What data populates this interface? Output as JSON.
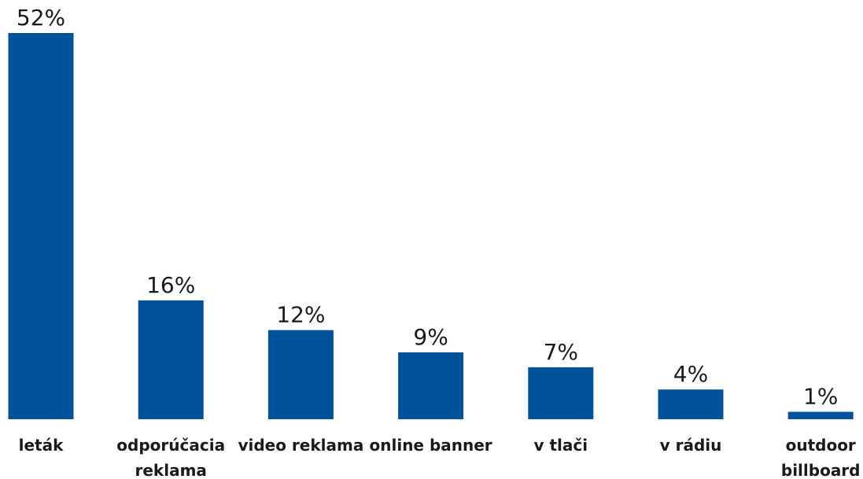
{
  "chart_data": {
    "type": "bar",
    "categories": [
      [
        "leták"
      ],
      [
        "odporúčacia",
        "reklama"
      ],
      [
        "video reklama"
      ],
      [
        "online banner"
      ],
      [
        "v tlači"
      ],
      [
        "v rádiu"
      ],
      [
        "outdoor",
        "billboard"
      ]
    ],
    "values": [
      52,
      16,
      12,
      9,
      7,
      4,
      1
    ],
    "value_labels": [
      "52%",
      "16%",
      "12%",
      "9%",
      "7%",
      "4%",
      "1%"
    ],
    "unit": "%",
    "ylim": [
      0,
      52
    ],
    "grid": false,
    "legend": "none",
    "bar_color": "#00539b"
  }
}
